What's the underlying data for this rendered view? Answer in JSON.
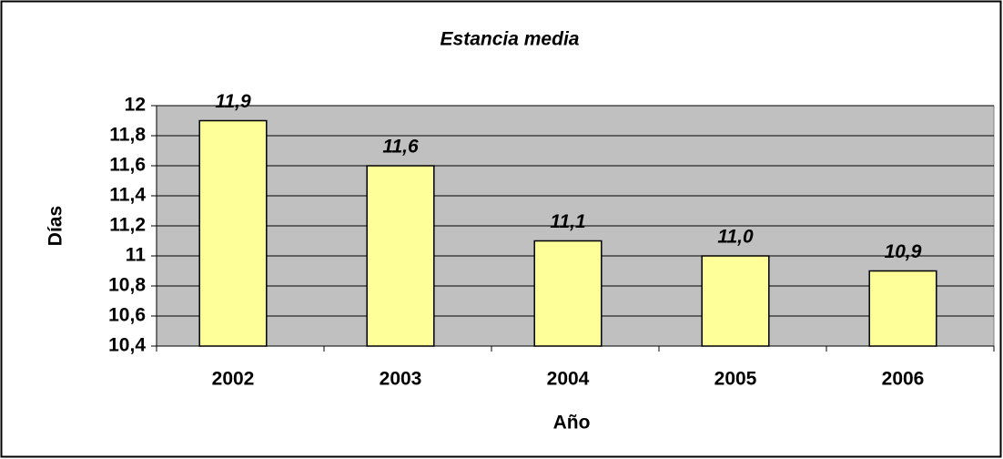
{
  "chart_data": {
    "type": "bar",
    "title": "Estancia media",
    "x_label": "Año",
    "y_label": "Días",
    "categories": [
      "2002",
      "2003",
      "2004",
      "2005",
      "2006"
    ],
    "values": [
      11.9,
      11.6,
      11.1,
      11.0,
      10.9
    ],
    "value_labels": [
      "11,9",
      "11,6",
      "11,1",
      "11,0",
      "10,9"
    ],
    "color": "#ffff99",
    "ylim": [
      10.4,
      12
    ],
    "yticks": [
      {
        "value": 10.4,
        "label": "10,4"
      },
      {
        "value": 10.6,
        "label": "10,6"
      },
      {
        "value": 10.8,
        "label": "10,8"
      },
      11,
      {
        "value": 11.2,
        "label": "11,2"
      },
      {
        "value": 11.4,
        "label": "11,4"
      },
      {
        "value": 11.6,
        "label": "11,6"
      },
      {
        "value": 11.8,
        "label": "11,8"
      },
      12
    ],
    "grid": true
  }
}
